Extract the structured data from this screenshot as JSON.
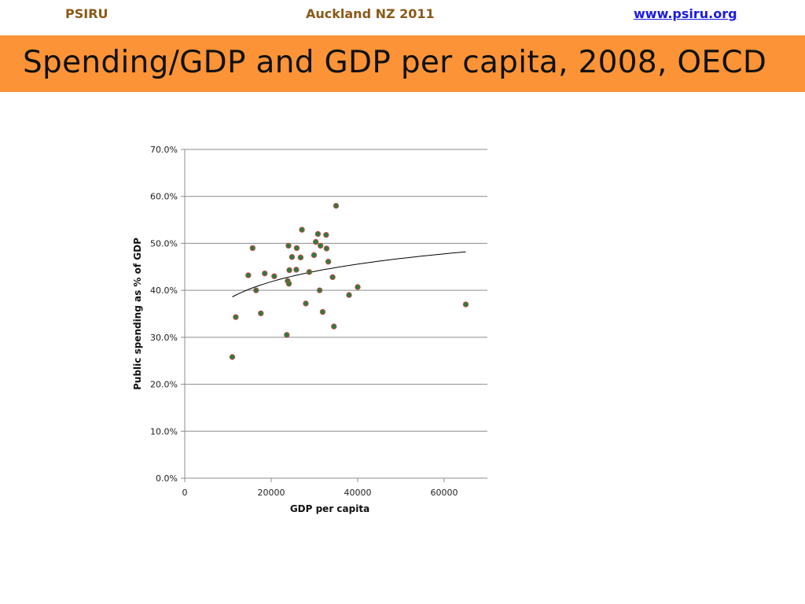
{
  "header": {
    "org": "PSIRU",
    "event": "Auckland NZ 2011",
    "site": "www.psiru.org"
  },
  "title": "Spending/GDP and GDP per capita, 2008, OECD",
  "colors": {
    "title_bar": "#fc9437",
    "header_text": "#8a5a17",
    "link": "#1a1ae0",
    "marker_fill": "#2d7a3e",
    "marker_edge": "#c0504d",
    "gridline": "#8c8c8c",
    "trendline": "#000000"
  },
  "chart_data": {
    "type": "scatter",
    "xlabel": "GDP per capita",
    "ylabel": "Public spending as % of GDP",
    "xlim": [
      0,
      70000
    ],
    "ylim": [
      0,
      70
    ],
    "x_ticks": [
      "0",
      "20000",
      "40000",
      "60000"
    ],
    "y_ticks": [
      "0.0%",
      "10.0%",
      "20.0%",
      "30.0%",
      "40.0%",
      "50.0%",
      "60.0%",
      "70.0%"
    ],
    "grid": "horizontal",
    "legend": "none",
    "points": [
      {
        "x": 11000,
        "y": 25.8
      },
      {
        "x": 11800,
        "y": 34.3
      },
      {
        "x": 14700,
        "y": 43.2
      },
      {
        "x": 15700,
        "y": 49.0
      },
      {
        "x": 16500,
        "y": 40.0
      },
      {
        "x": 17600,
        "y": 35.1
      },
      {
        "x": 18500,
        "y": 43.6
      },
      {
        "x": 20700,
        "y": 43.0
      },
      {
        "x": 23600,
        "y": 30.5
      },
      {
        "x": 23800,
        "y": 42.0
      },
      {
        "x": 24000,
        "y": 49.5
      },
      {
        "x": 24100,
        "y": 41.4
      },
      {
        "x": 24200,
        "y": 44.3
      },
      {
        "x": 24800,
        "y": 47.1
      },
      {
        "x": 25800,
        "y": 44.4
      },
      {
        "x": 25900,
        "y": 49.0
      },
      {
        "x": 26800,
        "y": 47.0
      },
      {
        "x": 27100,
        "y": 52.9
      },
      {
        "x": 28000,
        "y": 37.2
      },
      {
        "x": 28800,
        "y": 43.9
      },
      {
        "x": 29900,
        "y": 47.5
      },
      {
        "x": 30300,
        "y": 50.3
      },
      {
        "x": 30800,
        "y": 52.0
      },
      {
        "x": 31200,
        "y": 40.0
      },
      {
        "x": 31400,
        "y": 49.5
      },
      {
        "x": 31900,
        "y": 35.4
      },
      {
        "x": 32700,
        "y": 51.8
      },
      {
        "x": 32800,
        "y": 48.9
      },
      {
        "x": 33200,
        "y": 46.1
      },
      {
        "x": 34200,
        "y": 42.8
      },
      {
        "x": 34500,
        "y": 32.3
      },
      {
        "x": 35000,
        "y": 58.0
      },
      {
        "x": 38000,
        "y": 39.0
      },
      {
        "x": 40000,
        "y": 40.7
      },
      {
        "x": 65000,
        "y": 37.0
      }
    ],
    "trendline": {
      "type": "logarithmic",
      "x_start": 11000,
      "x_end": 65000,
      "y_start": 38.6,
      "y_end": 48.2
    }
  }
}
